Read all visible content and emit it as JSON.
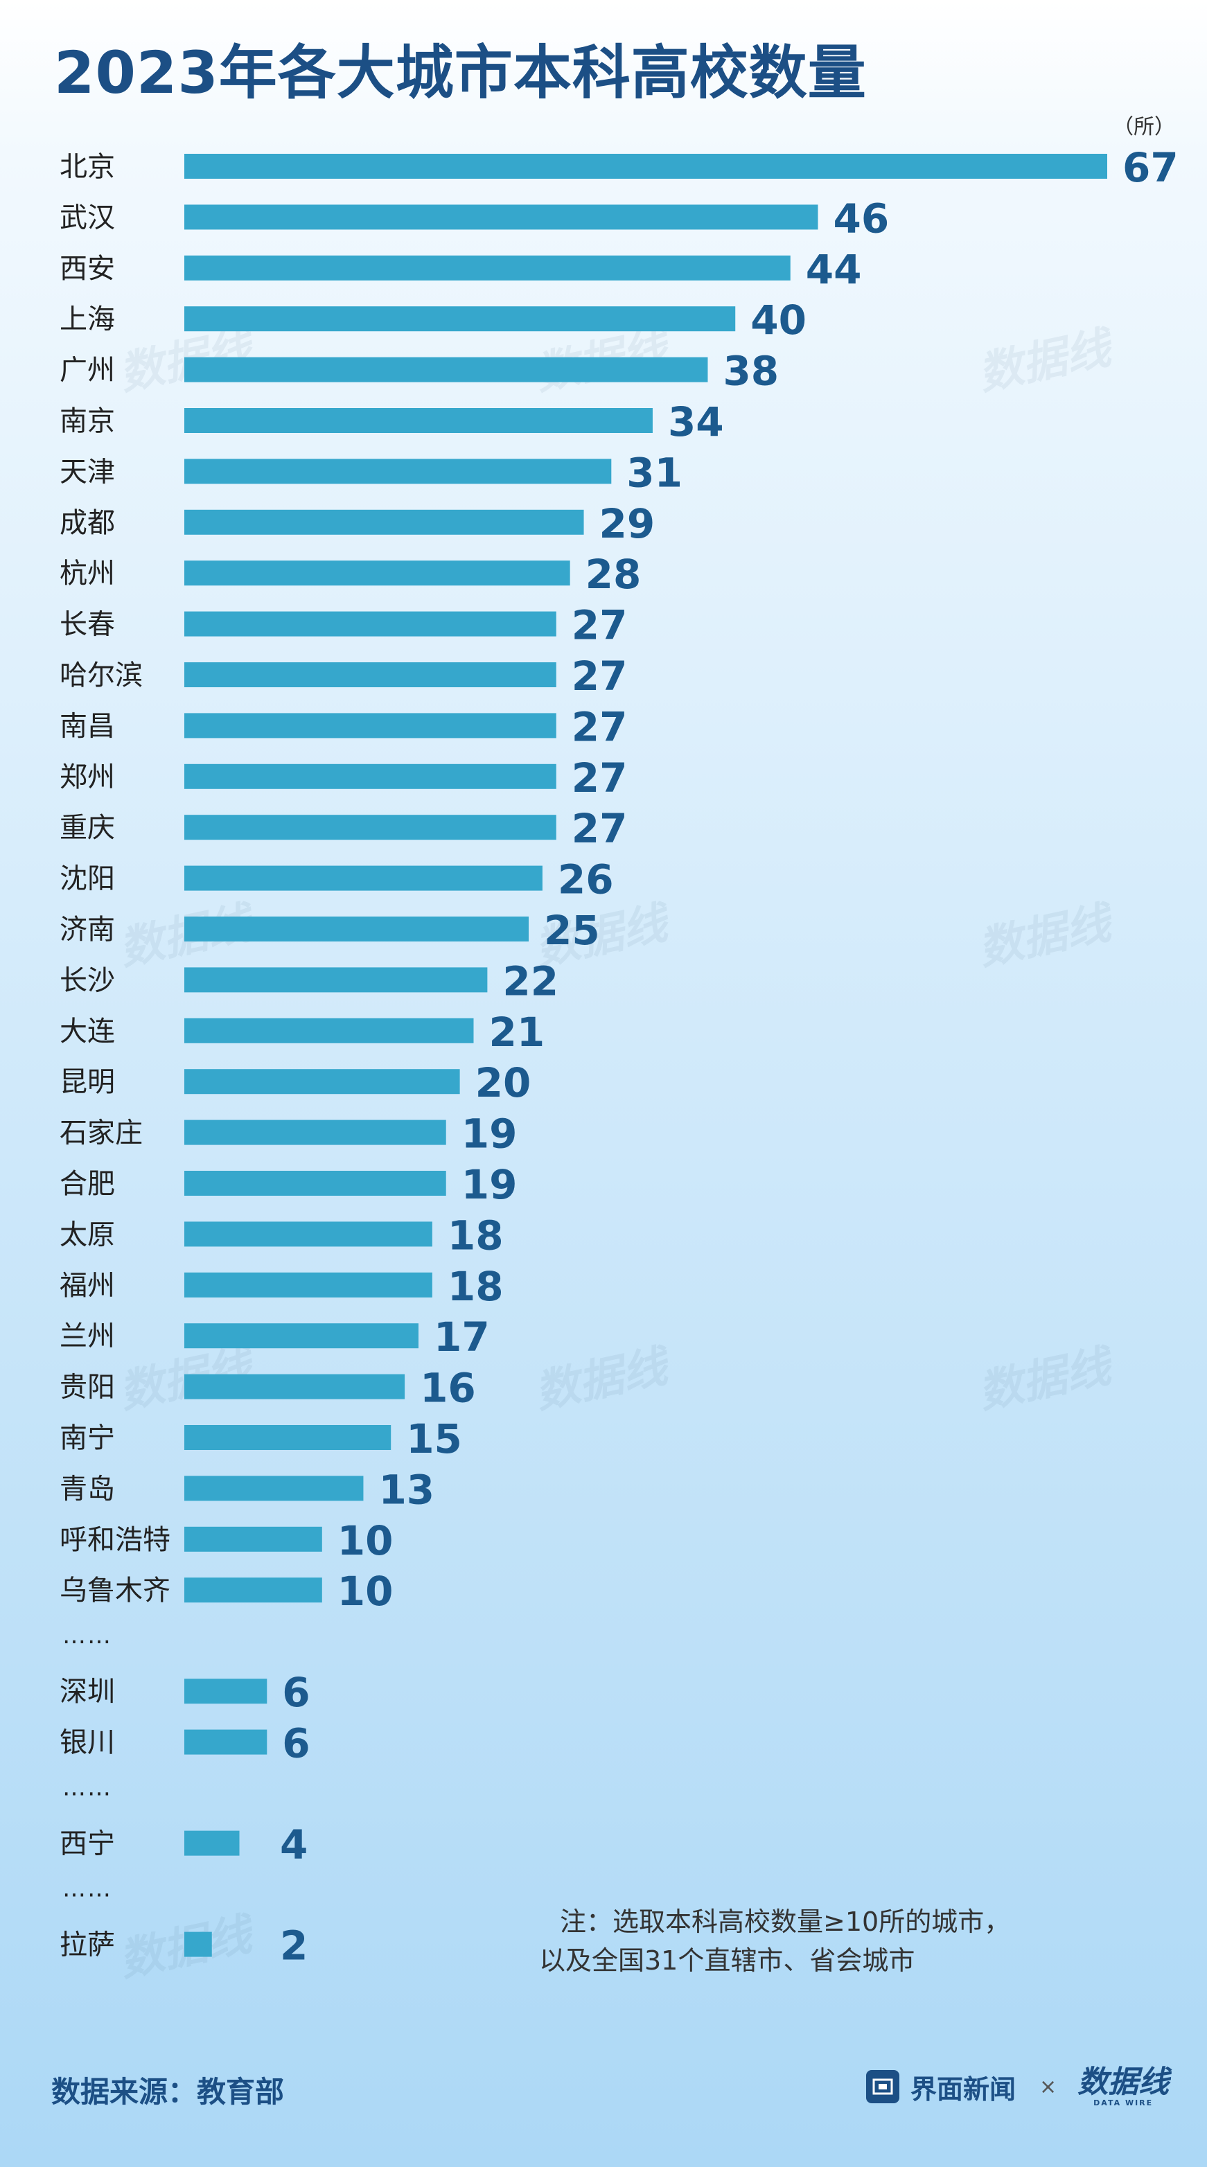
{
  "title": "2023年各大城市本科高校数量",
  "unit_label": "（所）",
  "chart_data": {
    "type": "bar",
    "orientation": "horizontal",
    "unit": "所",
    "categories": [
      "北京",
      "武汉",
      "西安",
      "上海",
      "广州",
      "南京",
      "天津",
      "成都",
      "杭州",
      "长春",
      "哈尔滨",
      "南昌",
      "郑州",
      "重庆",
      "沈阳",
      "济南",
      "长沙",
      "大连",
      "昆明",
      "石家庄",
      "合肥",
      "太原",
      "福州",
      "兰州",
      "贵阳",
      "南宁",
      "青岛",
      "呼和浩特",
      "乌鲁木齐",
      "深圳",
      "银川",
      "西宁",
      "拉萨"
    ],
    "values": [
      67,
      46,
      44,
      40,
      38,
      34,
      31,
      29,
      28,
      27,
      27,
      27,
      27,
      27,
      26,
      25,
      22,
      21,
      20,
      19,
      19,
      18,
      18,
      17,
      16,
      15,
      13,
      10,
      10,
      6,
      6,
      4,
      2
    ],
    "ellipsis_after": [
      "乌鲁木齐",
      "银川",
      "西宁"
    ],
    "ellipsis_text": "……",
    "xlim": [
      0,
      67
    ]
  },
  "note": {
    "line1": "注：选取本科高校数量≥10所的城市，",
    "line2": "以及全国31个直辖市、省会城市"
  },
  "source": "数据来源：教育部",
  "brand": {
    "name": "界面新闻",
    "times": "×",
    "logo_cn": "数据线",
    "logo_en": "DATA WIRE"
  },
  "watermark": "数据线"
}
